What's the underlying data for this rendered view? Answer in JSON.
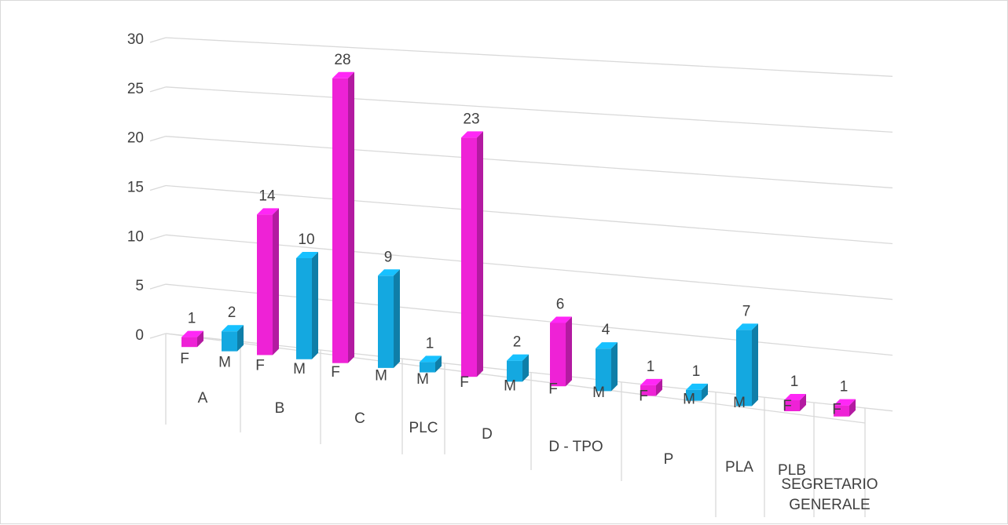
{
  "chart_data": {
    "type": "bar",
    "subtype": "3d-column",
    "title": "",
    "xlabel": "",
    "ylabel": "",
    "ylim": [
      0,
      30
    ],
    "yticks": [
      0,
      5,
      10,
      15,
      20,
      25,
      30
    ],
    "grid": true,
    "legend": "none",
    "colors": {
      "F": "#ee22d6",
      "M": "#14a8e0"
    },
    "categories": [
      {
        "group": "A",
        "sub": "F",
        "value": 1
      },
      {
        "group": "A",
        "sub": "M",
        "value": 2
      },
      {
        "group": "B",
        "sub": "F",
        "value": 14
      },
      {
        "group": "B",
        "sub": "M",
        "value": 10
      },
      {
        "group": "C",
        "sub": "F",
        "value": 28
      },
      {
        "group": "C",
        "sub": "M",
        "value": 9
      },
      {
        "group": "PLC",
        "sub": "M",
        "value": 1
      },
      {
        "group": "D",
        "sub": "F",
        "value": 23
      },
      {
        "group": "D",
        "sub": "M",
        "value": 2
      },
      {
        "group": "D - TPO",
        "sub": "F",
        "value": 6
      },
      {
        "group": "D - TPO",
        "sub": "M",
        "value": 4
      },
      {
        "group": "P",
        "sub": "F",
        "value": 1
      },
      {
        "group": "P",
        "sub": "M",
        "value": 1
      },
      {
        "group": "PLA",
        "sub": "M",
        "value": 7
      },
      {
        "group": "PLB",
        "sub": "F",
        "value": 1
      },
      {
        "group": "SEGRETARIO GENERALE",
        "sub": "F",
        "value": 1
      }
    ],
    "groups": [
      "A",
      "B",
      "C",
      "PLC",
      "D",
      "D - TPO",
      "P",
      "PLA",
      "PLB",
      "SEGRETARIO GENERALE"
    ]
  }
}
